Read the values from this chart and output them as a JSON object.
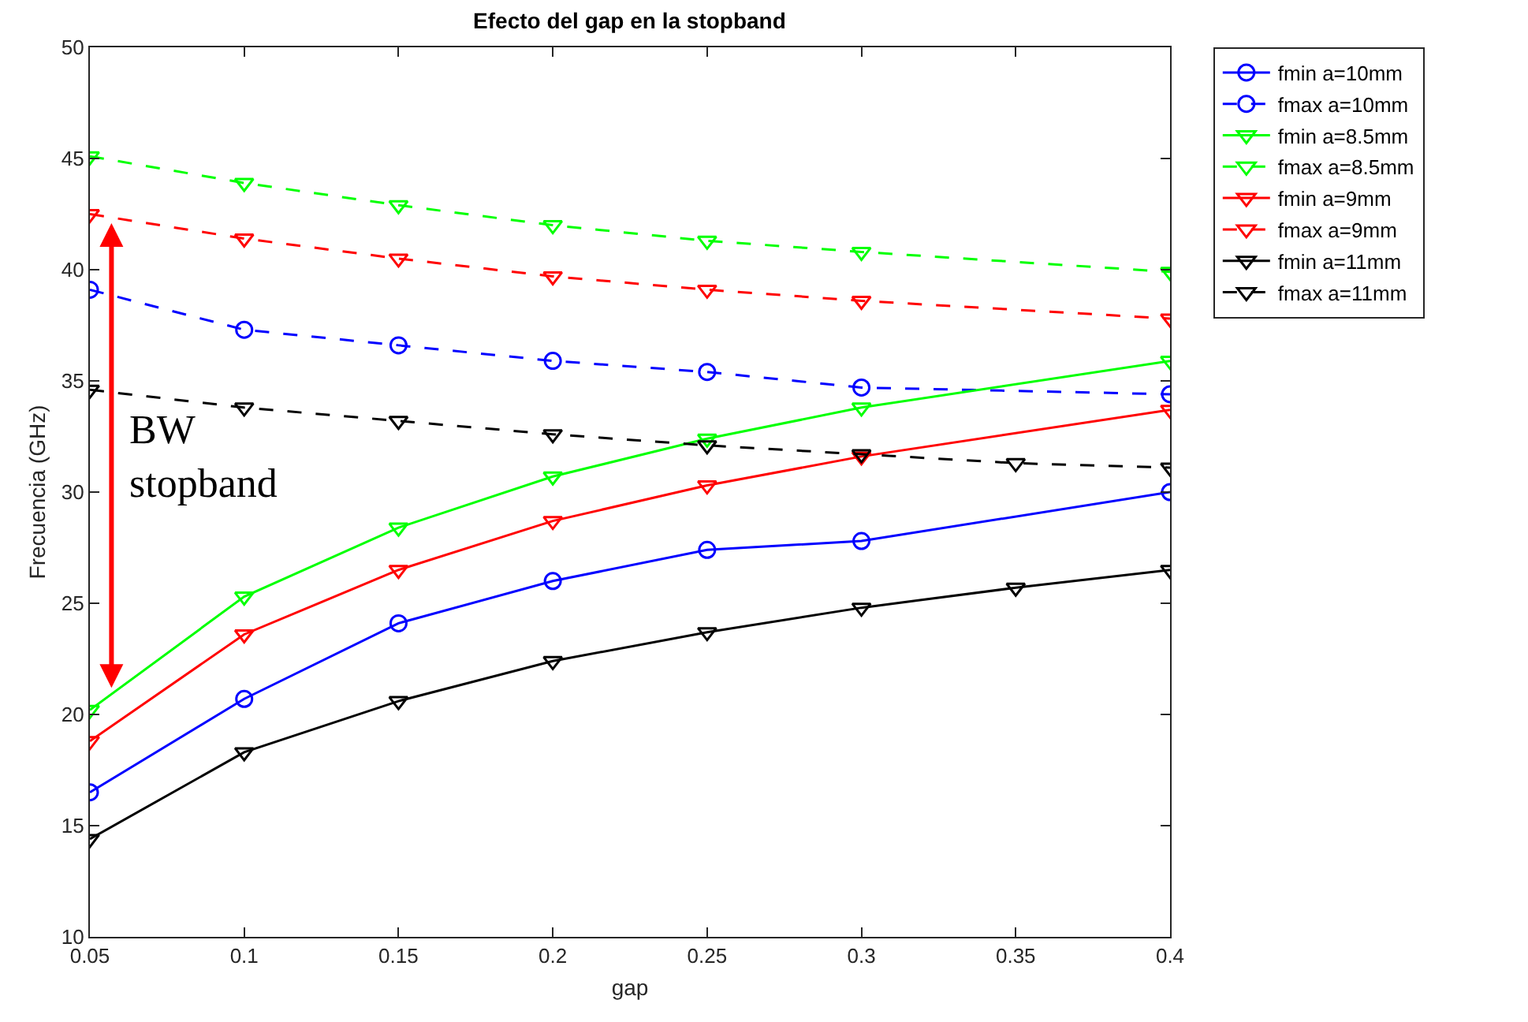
{
  "chart_data": {
    "type": "line",
    "title": "Efecto del gap en la stopband",
    "xlabel": "gap",
    "ylabel": "Frecuencia (GHz)",
    "xlim": [
      0.05,
      0.4
    ],
    "xticks": [
      0.05,
      0.1,
      0.15,
      0.2,
      0.25,
      0.3,
      0.35,
      0.4
    ],
    "ylim": [
      10,
      50
    ],
    "yticks": [
      10,
      15,
      20,
      25,
      30,
      35,
      40,
      45,
      50
    ],
    "legend": "top right",
    "annotations": [
      "BW\nstopband"
    ],
    "series": [
      {
        "name": "fmin a=10mm",
        "color": "#0000ff",
        "marker": "circle",
        "line_style": "solid",
        "x": [
          0.05,
          0.1,
          0.15,
          0.2,
          0.25,
          0.3,
          0.4
        ],
        "values": [
          16.5,
          20.7,
          24.1,
          26.0,
          27.4,
          27.8,
          30.0
        ]
      },
      {
        "name": "fmax a=10mm",
        "color": "#0000ff",
        "marker": "circle",
        "line_style": "dashed",
        "x": [
          0.05,
          0.1,
          0.15,
          0.2,
          0.25,
          0.3,
          0.4
        ],
        "values": [
          39.1,
          37.3,
          36.6,
          35.9,
          35.4,
          34.7,
          34.4
        ]
      },
      {
        "name": "fmin a=8.5mm",
        "color": "#00ff00",
        "marker": "triangle",
        "line_style": "solid",
        "x": [
          0.05,
          0.1,
          0.15,
          0.2,
          0.25,
          0.3,
          0.4
        ],
        "values": [
          20.2,
          25.3,
          28.4,
          30.7,
          32.4,
          33.8,
          35.9
        ]
      },
      {
        "name": "fmax a=8.5mm",
        "color": "#00ff00",
        "marker": "triangle",
        "line_style": "dashed",
        "x": [
          0.05,
          0.1,
          0.15,
          0.2,
          0.25,
          0.3,
          0.4
        ],
        "values": [
          45.1,
          43.9,
          42.9,
          42.0,
          41.3,
          40.8,
          39.9
        ]
      },
      {
        "name": "fmin a=9mm",
        "color": "#ff0000",
        "marker": "triangle",
        "line_style": "solid",
        "x": [
          0.05,
          0.1,
          0.15,
          0.2,
          0.25,
          0.3,
          0.4
        ],
        "values": [
          18.8,
          23.6,
          26.5,
          28.7,
          30.3,
          31.6,
          33.7
        ]
      },
      {
        "name": "fmax a=9mm",
        "color": "#ff0000",
        "marker": "triangle",
        "line_style": "dashed",
        "x": [
          0.05,
          0.1,
          0.15,
          0.2,
          0.25,
          0.3,
          0.4
        ],
        "values": [
          42.5,
          41.4,
          40.5,
          39.7,
          39.1,
          38.6,
          37.8
        ]
      },
      {
        "name": "fmin a=11mm",
        "color": "#000000",
        "marker": "triangle",
        "line_style": "solid",
        "x": [
          0.05,
          0.1,
          0.15,
          0.2,
          0.25,
          0.3,
          0.35,
          0.4
        ],
        "values": [
          14.4,
          18.3,
          20.6,
          22.4,
          23.7,
          24.8,
          25.7,
          26.5
        ]
      },
      {
        "name": "fmax a=11mm",
        "color": "#000000",
        "marker": "triangle",
        "line_style": "dashed",
        "x": [
          0.05,
          0.1,
          0.15,
          0.2,
          0.25,
          0.3,
          0.35,
          0.4
        ],
        "values": [
          34.6,
          33.8,
          33.2,
          32.6,
          32.1,
          31.7,
          31.3,
          31.1
        ]
      }
    ]
  }
}
